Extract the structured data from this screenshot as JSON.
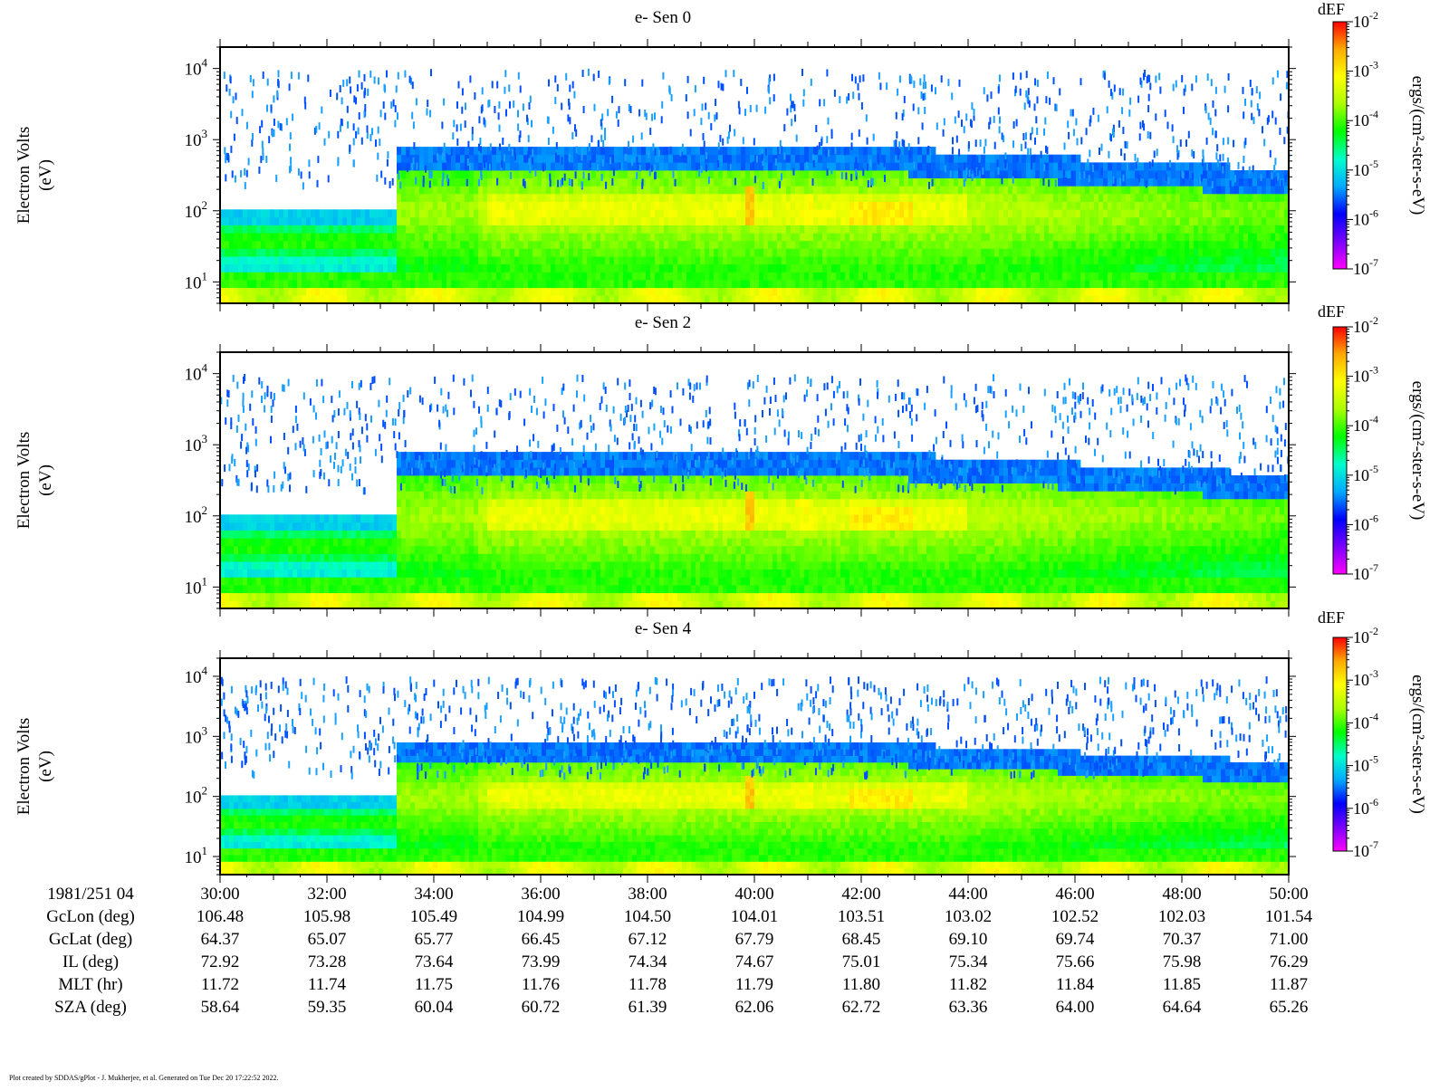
{
  "chart_data": {
    "type": "heatmap",
    "panels": [
      {
        "title": "e- Sen 0",
        "ylabel_line1": "Electron Volts",
        "ylabel_line2": "(eV)"
      },
      {
        "title": "e- Sen 2",
        "ylabel_line1": "Electron Volts",
        "ylabel_line2": "(eV)"
      },
      {
        "title": "e- Sen 4",
        "ylabel_line1": "Electron Volts",
        "ylabel_line2": "(eV)"
      }
    ],
    "y_scale": "log",
    "ylim": [
      5,
      20000
    ],
    "y_tick_values": [
      10,
      100,
      1000,
      10000
    ],
    "y_tick_bases": [
      "10",
      "10",
      "10",
      "10"
    ],
    "y_tick_exponents": [
      "1",
      "2",
      "3",
      "4"
    ],
    "x_time_labels": [
      "30:00",
      "32:00",
      "34:00",
      "36:00",
      "38:00",
      "40:00",
      "42:00",
      "44:00",
      "46:00",
      "48:00",
      "50:00"
    ],
    "x_range_minutes": [
      30,
      50
    ],
    "colorbar": {
      "title": "dEF",
      "label": "ergs/(cm²-ster-s-eV)",
      "scale": "log",
      "range": [
        1e-07,
        0.01
      ],
      "tick_bases": [
        "10",
        "10",
        "10",
        "10",
        "10",
        "10"
      ],
      "tick_exponents": [
        "-2",
        "-3",
        "-4",
        "-5",
        "-6",
        "-7"
      ],
      "colors": [
        "#ff00ff",
        "#7a00ff",
        "#0000ff",
        "#00aaff",
        "#00ffcc",
        "#00ff00",
        "#aaff00",
        "#ffff00",
        "#ffaa00",
        "#ff0000"
      ]
    },
    "ephemeris": {
      "date_label": "1981/251 04",
      "rows": [
        {
          "label": "GcLon (deg)",
          "values": [
            "106.48",
            "105.98",
            "105.49",
            "104.99",
            "104.50",
            "104.01",
            "103.51",
            "103.02",
            "102.52",
            "102.03",
            "101.54"
          ]
        },
        {
          "label": "GcLat (deg)",
          "values": [
            "64.37",
            "65.07",
            "65.77",
            "66.45",
            "67.12",
            "67.79",
            "68.45",
            "69.10",
            "69.74",
            "70.37",
            "71.00"
          ]
        },
        {
          "label": "IL (deg)",
          "values": [
            "72.92",
            "73.28",
            "73.64",
            "73.99",
            "74.34",
            "74.67",
            "75.01",
            "75.34",
            "75.66",
            "75.98",
            "76.29"
          ]
        },
        {
          "label": "MLT (hr)",
          "values": [
            "11.72",
            "11.74",
            "11.75",
            "11.76",
            "11.78",
            "11.79",
            "11.80",
            "11.82",
            "11.84",
            "11.85",
            "11.87"
          ]
        },
        {
          "label": "SZA (deg)",
          "values": [
            "58.64",
            "59.35",
            "60.04",
            "60.72",
            "61.39",
            "62.06",
            "62.72",
            "63.36",
            "64.00",
            "64.64",
            "65.26"
          ]
        }
      ]
    }
  },
  "footer": "Plot created by SDDAS/gPlot - J. Mukherjee, et al.  Generated on Tue Dec 20 17:22:52 2022."
}
